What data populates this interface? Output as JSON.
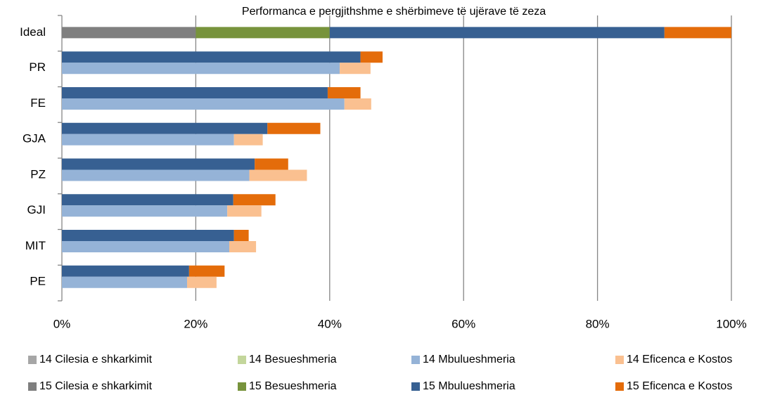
{
  "chart_data": {
    "type": "stacked-barh",
    "title": "Performanca e pergjithshme e  shërbimeve të ujërave të zeza",
    "categories": [
      "Ideal",
      "PR",
      "FE",
      "GJA",
      "PZ",
      "GJI",
      "MIT",
      "PE"
    ],
    "series": [
      {
        "name": "14 Cilesia e shkarkimit",
        "color": "#a6a6a6",
        "values": [
          null,
          null,
          null,
          null,
          null,
          null,
          null,
          null
        ]
      },
      {
        "name": "14 Besueshmeria",
        "color": "#c3d69b",
        "values": [
          null,
          null,
          null,
          null,
          null,
          null,
          null,
          null
        ]
      },
      {
        "name": "14 Mbulueshmeria",
        "color": "#95b3d7",
        "values": [
          null,
          41.5,
          42.2,
          25.7,
          28.0,
          24.7,
          25.0,
          18.7
        ]
      },
      {
        "name": "14 Eficenca e Kostos",
        "color": "#fac090",
        "values": [
          null,
          4.6,
          4.0,
          4.3,
          8.6,
          5.1,
          4.0,
          4.4
        ]
      },
      {
        "name": "15 Cilesia e shkarkimit",
        "color": "#7f7f7f",
        "values": [
          20,
          null,
          null,
          null,
          null,
          null,
          null,
          null
        ]
      },
      {
        "name": "15 Besueshmeria",
        "color": "#77933c",
        "values": [
          20,
          null,
          null,
          null,
          null,
          null,
          null,
          null
        ]
      },
      {
        "name": "15 Mbulueshmeria",
        "color": "#376092",
        "values": [
          50,
          44.6,
          39.7,
          30.7,
          28.8,
          25.6,
          25.7,
          19.0
        ]
      },
      {
        "name": "15 Eficenca e Kostos",
        "color": "#e46c0a",
        "values": [
          10,
          3.3,
          4.9,
          7.9,
          5.0,
          6.3,
          2.2,
          5.3
        ]
      }
    ],
    "xlim": [
      0,
      100
    ],
    "xticks": [
      {
        "value": 0,
        "label": "0%"
      },
      {
        "value": 20,
        "label": "20%"
      },
      {
        "value": 40,
        "label": "40%"
      },
      {
        "value": 60,
        "label": "60%"
      },
      {
        "value": 80,
        "label": "80%"
      },
      {
        "value": 100,
        "label": "100%"
      }
    ],
    "grid": true,
    "legend": "bottom"
  }
}
